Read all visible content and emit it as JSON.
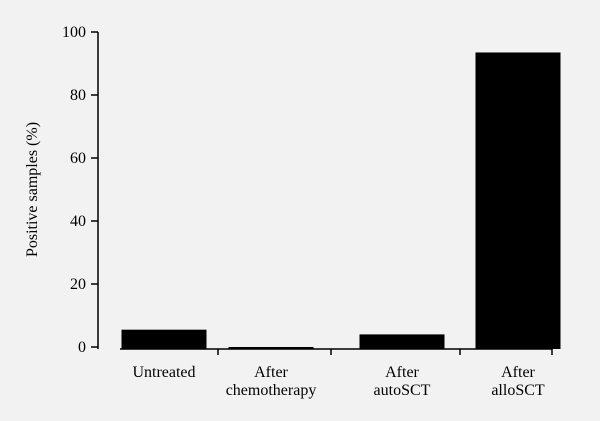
{
  "chart_data": {
    "type": "bar",
    "categories": [
      [
        "Untreated"
      ],
      [
        "After",
        "chemotherapy"
      ],
      [
        "After",
        "autoSCT"
      ],
      [
        "After",
        "alloSCT"
      ]
    ],
    "values": [
      5.5,
      0,
      4,
      93.5
    ],
    "title": "",
    "xlabel": "",
    "ylabel": "Positive samples (%)",
    "ylim": [
      0,
      100
    ],
    "yticks": [
      0,
      20,
      40,
      60,
      80,
      100
    ],
    "grid": false,
    "bar_color": "#000000",
    "background": "#f2f2f2"
  }
}
